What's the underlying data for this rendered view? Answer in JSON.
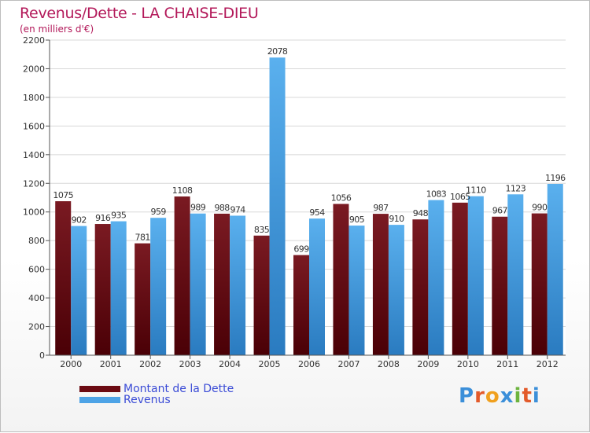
{
  "header": {
    "title": "Revenus/Dette - LA CHAISE-DIEU",
    "subtitle": "(en milliers d'€)"
  },
  "chart_data": {
    "type": "bar",
    "title": "Revenus/Dette - LA CHAISE-DIEU",
    "ylabel": "(en milliers d'€)",
    "xlabel": "",
    "ylim": [
      0,
      2200
    ],
    "yticks": [
      0,
      200,
      400,
      600,
      800,
      1000,
      1200,
      1400,
      1600,
      1800,
      2000,
      2200
    ],
    "categories": [
      "2000",
      "2001",
      "2002",
      "2003",
      "2004",
      "2005",
      "2006",
      "2007",
      "2008",
      "2009",
      "2010",
      "2011",
      "2012"
    ],
    "series": [
      {
        "name": "Montant de la Dette",
        "color": "#6b0a12",
        "values": [
          1075,
          916,
          781,
          1108,
          988,
          835,
          699,
          1056,
          987,
          948,
          1065,
          967,
          990
        ]
      },
      {
        "name": "Revenus",
        "color": "#4da3e6",
        "values": [
          902,
          935,
          959,
          989,
          974,
          2078,
          954,
          905,
          910,
          1083,
          1110,
          1123,
          1196
        ]
      }
    ],
    "grid": true,
    "legend_position": "bottom-left"
  },
  "legend": {
    "dette_label": "Montant de la Dette",
    "revenus_label": "Revenus"
  },
  "logo": {
    "text": "Proxiti",
    "letter_colors": [
      "#3b8fd9",
      "#e35a2a",
      "#f0a01e",
      "#3b8fd9",
      "#6cb33e",
      "#e35a2a",
      "#3b8fd9"
    ]
  }
}
